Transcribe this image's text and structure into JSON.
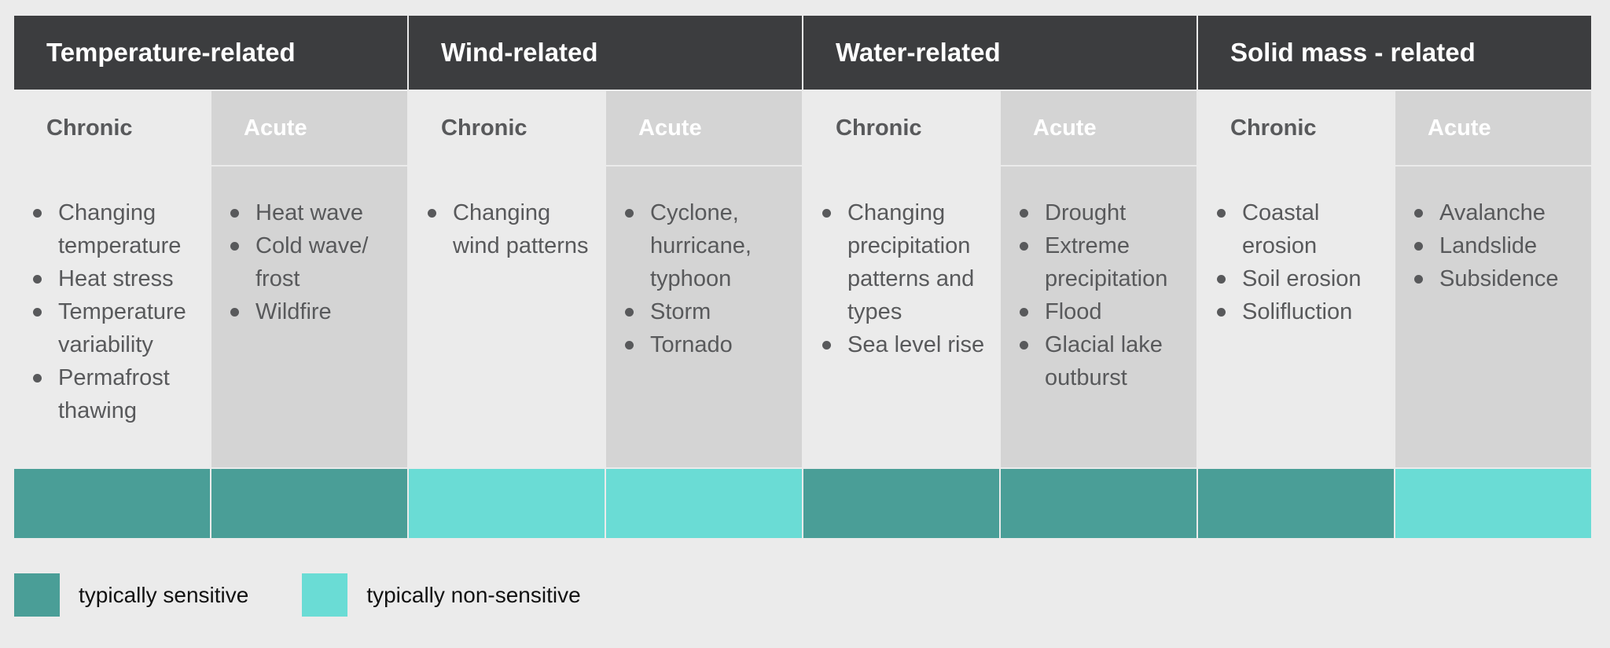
{
  "colors": {
    "header_bg": "#3c3d3f",
    "sensitive": "#4a9e97",
    "nonsensitive": "#6adcd5"
  },
  "categories": [
    {
      "title": "Temperature-related",
      "chronic": {
        "label": "Chronic",
        "items": [
          "Changing temperature",
          "Heat stress",
          "Temperature variability",
          "Permafrost thawing"
        ],
        "sensitivity": "sensitive"
      },
      "acute": {
        "label": "Acute",
        "items": [
          "Heat wave",
          "Cold wave/ frost",
          "Wildfire"
        ],
        "sensitivity": "sensitive"
      }
    },
    {
      "title": "Wind-related",
      "chronic": {
        "label": "Chronic",
        "items": [
          "Changing wind patterns"
        ],
        "sensitivity": "nonsensitive"
      },
      "acute": {
        "label": "Acute",
        "items": [
          "Cyclone, hurricane, typhoon",
          "Storm",
          "Tornado"
        ],
        "sensitivity": "nonsensitive"
      }
    },
    {
      "title": "Water-related",
      "chronic": {
        "label": "Chronic",
        "items": [
          "Changing precipitation patterns and types",
          "Sea level rise"
        ],
        "sensitivity": "sensitive"
      },
      "acute": {
        "label": "Acute",
        "items": [
          "Drought",
          "Extreme precipitation",
          "Flood",
          "Glacial lake outburst"
        ],
        "sensitivity": "sensitive"
      }
    },
    {
      "title": "Solid mass - related",
      "chronic": {
        "label": "Chronic",
        "items": [
          "Coastal erosion",
          "Soil erosion",
          "Solifluction"
        ],
        "sensitivity": "sensitive"
      },
      "acute": {
        "label": "Acute",
        "items": [
          "Avalanche",
          "Landslide",
          "Subsidence"
        ],
        "sensitivity": "nonsensitive"
      }
    }
  ],
  "legend": {
    "sensitive_label": "typically sensitive",
    "nonsensitive_label": "typically non-sensitive"
  }
}
